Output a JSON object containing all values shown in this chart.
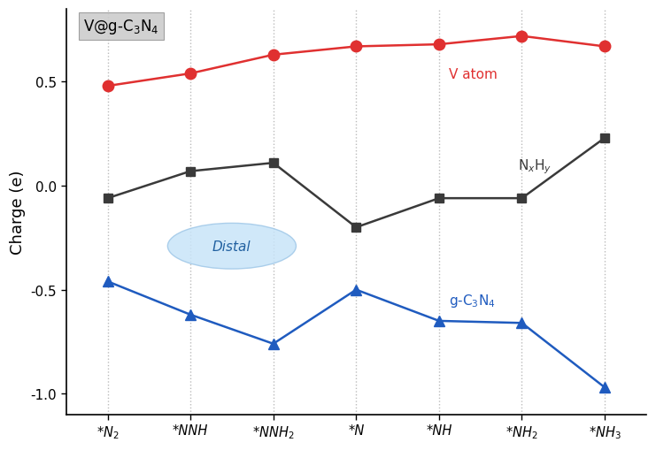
{
  "x_labels": [
    "*N$_2$",
    "*NNH",
    "*NNH$_2$",
    "*N",
    "*NH",
    "*NH$_2$",
    "*NH$_3$"
  ],
  "x_values": [
    0,
    1,
    2,
    3,
    4,
    5,
    6
  ],
  "red_series": {
    "label": "V atom",
    "color": "#e03030",
    "values": [
      0.48,
      0.54,
      0.63,
      0.67,
      0.68,
      0.72,
      0.67
    ],
    "marker": "o",
    "markersize": 9
  },
  "black_series": {
    "label": "N$_x$H$_y$",
    "color": "#3a3a3a",
    "values": [
      -0.06,
      0.07,
      0.11,
      -0.2,
      -0.06,
      -0.06,
      0.23
    ],
    "marker": "s",
    "markersize": 7
  },
  "blue_series": {
    "label": "g-C$_3$N$_4$",
    "color": "#1f5bbf",
    "values": [
      -0.46,
      -0.62,
      -0.76,
      -0.5,
      -0.65,
      -0.66,
      -0.97
    ],
    "marker": "^",
    "markersize": 9
  },
  "title_box_text": "V@g-C$_3$N$_4$",
  "ylabel": "Charge (e)",
  "ylim": [
    -1.1,
    0.85
  ],
  "yticks": [
    -1.0,
    -0.5,
    0.0,
    0.5
  ],
  "background_color": "#ffffff",
  "plot_bg_color": "#ffffff",
  "distal_label": "Distal",
  "distal_color": "#c8e4f8",
  "distal_edge_color": "#a0c8e8",
  "grid_color": "#aaaaaa"
}
